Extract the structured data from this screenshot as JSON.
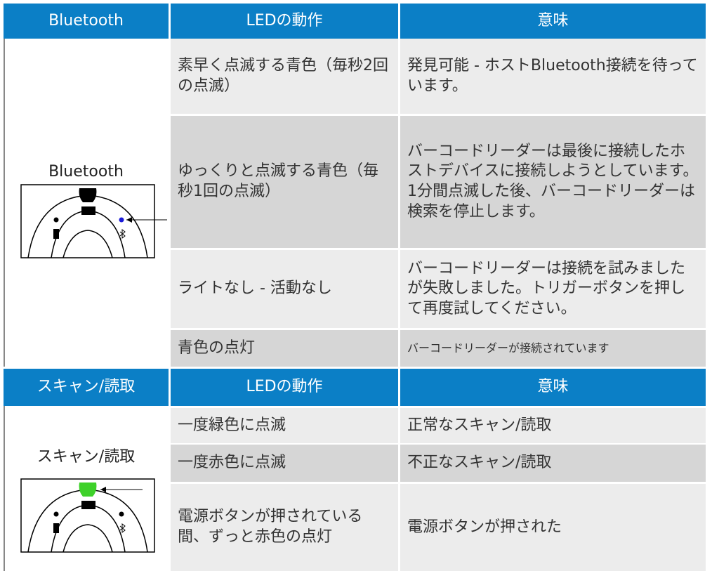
{
  "sections": [
    {
      "header": [
        "Bluetooth",
        "LEDの動作",
        "意味"
      ],
      "label": "Bluetooth",
      "rows": [
        [
          "素早く点滅する青色（毎秒2回の点滅）",
          "発見可能 - ホストBluetooth接続を待っています。"
        ],
        [
          "ゆっくりと点滅する青色（毎秒1回の点滅）",
          "バーコードリーダーは最後に接続したホストデバイスに接続しようとしています。1分間点滅した後、バーコードリーダーは検索を停止します。"
        ],
        [
          "ライトなし - 活動なし",
          "バーコードリーダーは接続を試みましたが失敗しました。トリガーボタンを押して再度試してください。"
        ],
        [
          "青色の点灯",
          "バーコードリーダーが接続されています"
        ]
      ]
    },
    {
      "header": [
        "スキャン/読取",
        "LEDの動作",
        "意味"
      ],
      "label": "スキャン/読取",
      "rows": [
        [
          "一度緑色に点滅",
          "正常なスキャン/読取"
        ],
        [
          "一度赤色に点滅",
          "不正なスキャン/読取"
        ],
        [
          "電源ボタンが押されている間、ずっと赤色の点灯",
          "電源ボタンが押された"
        ]
      ]
    }
  ]
}
